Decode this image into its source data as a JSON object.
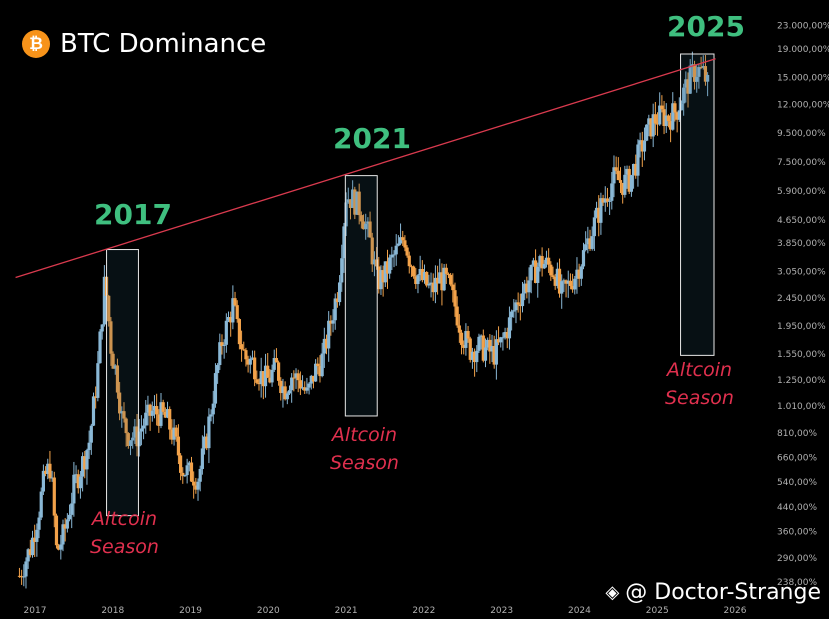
{
  "header": {
    "title": "BTC Dominance",
    "logo_glyph": "₿",
    "logo_icon": "bitcoin-icon"
  },
  "watermark": {
    "text": "@ Doctor-Strange",
    "icon": "binance-square-icon"
  },
  "annotations": {
    "year_2017": "2017",
    "year_2021": "2021",
    "year_2025": "2025",
    "alt_2017": [
      "Altcoin",
      "Season"
    ],
    "alt_2021": [
      "Altcoin",
      "Season"
    ],
    "alt_2025": [
      "Altcoin",
      "Season"
    ]
  },
  "colors": {
    "background": "#000000",
    "up_candle": "#8ab8d6",
    "down_candle": "#f2a24a",
    "trendline": "#d93a4e",
    "year_text": "#3fbf7f",
    "altcoin_text": "#e0304e",
    "axis_text": "#b0b0b0"
  },
  "chart_data": {
    "type": "candlestick",
    "title": "BTC Dominance",
    "scale": "log",
    "x_ticks": [
      "2017",
      "2018",
      "2019",
      "2020",
      "2021",
      "2022",
      "2023",
      "2024",
      "2025",
      "2026"
    ],
    "y_ticks": [
      "23.000,00%",
      "19.000,00%",
      "15.000,00%",
      "12.000,00%",
      "9.500,00%",
      "7.500,00%",
      "5.900,00%",
      "4.650,00%",
      "3.850,00%",
      "3.050,00%",
      "2.450,00%",
      "1.950,00%",
      "1.550,00%",
      "1.250,00%",
      "1.010,00%",
      "810,00%",
      "660,00%",
      "540,00%",
      "440,00%",
      "360,00%",
      "290,00%",
      "238,00%"
    ],
    "y_tick_values": [
      23000,
      19000,
      15000,
      12000,
      9500,
      7500,
      5900,
      4650,
      3850,
      3050,
      2450,
      1950,
      1550,
      1250,
      1010,
      810,
      660,
      540,
      440,
      360,
      290,
      238
    ],
    "series_points": [
      [
        2016.8,
        250
      ],
      [
        2016.95,
        320
      ],
      [
        2017.05,
        430
      ],
      [
        2017.12,
        560
      ],
      [
        2017.2,
        620
      ],
      [
        2017.28,
        300
      ],
      [
        2017.38,
        360
      ],
      [
        2017.5,
        520
      ],
      [
        2017.6,
        620
      ],
      [
        2017.7,
        760
      ],
      [
        2017.8,
        1300
      ],
      [
        2017.9,
        2900
      ],
      [
        2017.98,
        1600
      ],
      [
        2018.05,
        1300
      ],
      [
        2018.12,
        900
      ],
      [
        2018.2,
        800
      ],
      [
        2018.3,
        780
      ],
      [
        2018.4,
        880
      ],
      [
        2018.5,
        960
      ],
      [
        2018.6,
        950
      ],
      [
        2018.7,
        900
      ],
      [
        2018.8,
        760
      ],
      [
        2018.9,
        600
      ],
      [
        2019.0,
        580
      ],
      [
        2019.1,
        560
      ],
      [
        2019.2,
        760
      ],
      [
        2019.3,
        1150
      ],
      [
        2019.4,
        1700
      ],
      [
        2019.5,
        2100
      ],
      [
        2019.55,
        2350
      ],
      [
        2019.6,
        1900
      ],
      [
        2019.7,
        1500
      ],
      [
        2019.8,
        1450
      ],
      [
        2019.9,
        1300
      ],
      [
        2020.0,
        1250
      ],
      [
        2020.1,
        1400
      ],
      [
        2020.2,
        1150
      ],
      [
        2020.3,
        1300
      ],
      [
        2020.4,
        1250
      ],
      [
        2020.5,
        1100
      ],
      [
        2020.6,
        1350
      ],
      [
        2020.7,
        1500
      ],
      [
        2020.8,
        2000
      ],
      [
        2020.9,
        2700
      ],
      [
        2020.95,
        4000
      ],
      [
        2021.0,
        5700
      ],
      [
        2021.1,
        5500
      ],
      [
        2021.2,
        5000
      ],
      [
        2021.3,
        4000
      ],
      [
        2021.4,
        2800
      ],
      [
        2021.5,
        3000
      ],
      [
        2021.6,
        3400
      ],
      [
        2021.7,
        3800
      ],
      [
        2021.75,
        4100
      ],
      [
        2021.8,
        3500
      ],
      [
        2021.9,
        3000
      ],
      [
        2022.0,
        2800
      ],
      [
        2022.1,
        2600
      ],
      [
        2022.2,
        2900
      ],
      [
        2022.3,
        2800
      ],
      [
        2022.4,
        2300
      ],
      [
        2022.5,
        1800
      ],
      [
        2022.6,
        1600
      ],
      [
        2022.7,
        1650
      ],
      [
        2022.8,
        1600
      ],
      [
        2022.9,
        1550
      ],
      [
        2023.0,
        1700
      ],
      [
        2023.1,
        2000
      ],
      [
        2023.2,
        2400
      ],
      [
        2023.3,
        2700
      ],
      [
        2023.4,
        3000
      ],
      [
        2023.5,
        3300
      ],
      [
        2023.6,
        3200
      ],
      [
        2023.7,
        3000
      ],
      [
        2023.75,
        2500
      ],
      [
        2023.85,
        2700
      ],
      [
        2023.95,
        3000
      ],
      [
        2024.05,
        3500
      ],
      [
        2024.15,
        4200
      ],
      [
        2024.25,
        5000
      ],
      [
        2024.35,
        5800
      ],
      [
        2024.45,
        6600
      ],
      [
        2024.55,
        6300
      ],
      [
        2024.65,
        6500
      ],
      [
        2024.75,
        7800
      ],
      [
        2024.85,
        9300
      ],
      [
        2024.95,
        10500
      ],
      [
        2025.05,
        11000
      ],
      [
        2025.15,
        10800
      ],
      [
        2025.25,
        11500
      ],
      [
        2025.35,
        13500
      ],
      [
        2025.45,
        15500
      ],
      [
        2025.52,
        16000
      ],
      [
        2025.6,
        15500
      ],
      [
        2025.65,
        14000
      ]
    ],
    "trendline": [
      [
        2016.75,
        2900
      ],
      [
        2025.75,
        17500
      ]
    ],
    "highlight_boxes": [
      {
        "label": "2017",
        "x": [
          2017.92,
          2018.33
        ],
        "y": [
          410,
          3650
        ]
      },
      {
        "label": "2021",
        "x": [
          2020.99,
          2021.4
        ],
        "y": [
          930,
          6700
        ]
      },
      {
        "label": "2025",
        "x": [
          2025.3,
          2025.73
        ],
        "y": [
          1530,
          18200
        ]
      }
    ],
    "xlim": [
      2016.55,
      2026.45
    ],
    "ylim": [
      205,
      27000
    ],
    "grid": false,
    "legend": "none"
  }
}
